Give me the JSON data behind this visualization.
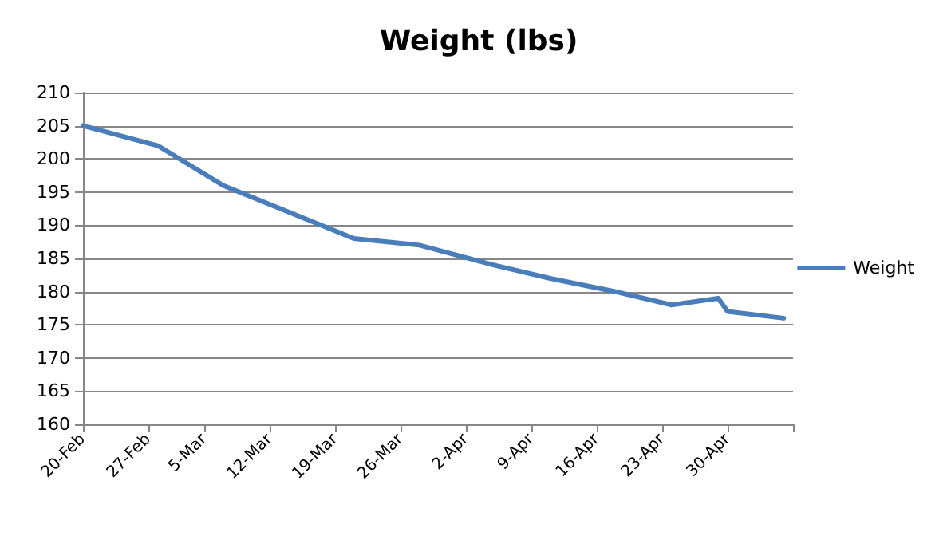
{
  "chart_data": {
    "type": "line",
    "title": "Weight (lbs)",
    "x": [
      "--02-20",
      "--02-28",
      "--03-07",
      "--03-21",
      "--03-28",
      "--04-05",
      "--04-11",
      "--04-18",
      "--04-24",
      "--04-29",
      "--04-30",
      "--05-06"
    ],
    "series": [
      {
        "name": "Weight",
        "color": "#4a7ebb",
        "values": [
          205,
          202,
          196,
          188,
          187,
          184,
          182,
          180,
          178,
          179,
          177,
          176
        ]
      }
    ],
    "xlim": [
      "--02-20",
      "--05-07"
    ],
    "xticks": [
      {
        "value": "--02-20",
        "label": "20-Feb"
      },
      {
        "value": "--02-27",
        "label": "27-Feb"
      },
      {
        "value": "--03-05",
        "label": "5-Mar"
      },
      {
        "value": "--03-12",
        "label": "12-Mar"
      },
      {
        "value": "--03-19",
        "label": "19-Mar"
      },
      {
        "value": "--03-26",
        "label": "26-Mar"
      },
      {
        "value": "--04-02",
        "label": "2-Apr"
      },
      {
        "value": "--04-09",
        "label": "9-Apr"
      },
      {
        "value": "--04-16",
        "label": "16-Apr"
      },
      {
        "value": "--04-23",
        "label": "23-Apr"
      },
      {
        "value": "--04-30",
        "label": "30-Apr"
      },
      {
        "value": "--05-07",
        "label": null
      }
    ],
    "ylim": [
      160,
      210
    ],
    "yticks": [
      160,
      165,
      170,
      175,
      180,
      185,
      190,
      195,
      200,
      205,
      210
    ],
    "grid": "y",
    "legend": "right",
    "marker": "none",
    "line_style": "solid"
  }
}
